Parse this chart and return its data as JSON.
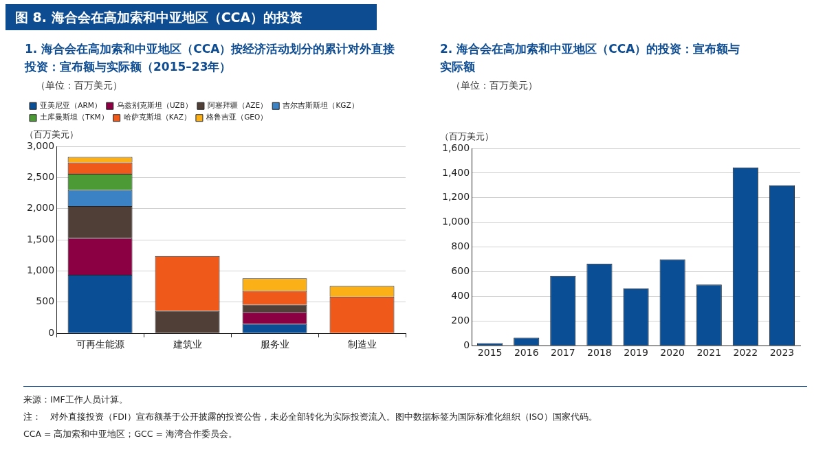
{
  "chart_data": [
    {
      "type": "other",
      "title": "图 8. 海合会在高加索和中亚地区（CCA）的投资",
      "annotations": [
        "来源：IMF工作人员计算。",
        "注：　对外直接投资（FDI）宣布额基于公开披露的投资公告，未必全部转化为实际投资流入。图中数据标签为国际标准化组织（ISO）国家代码。",
        "CCA = 高加索和中亚地区；GCC = 海湾合作委员会。"
      ]
    },
    {
      "type": "bar",
      "title": "1. 海合会在高加索和中亚地区（CCA）按经济活动划分的累计对外直接投资：宣布额与实际额（2015–23年）",
      "subtitle": "（单位：百万美元）",
      "ylabel": "（百万美元）",
      "stacked": true,
      "categories": [
        "可再生能源",
        "建筑业",
        "服务业",
        "制造业"
      ],
      "series": [
        {
          "name": "亚美尼亚（ARM）",
          "color": "#0a4f96",
          "values": [
            940,
            0,
            150,
            0
          ]
        },
        {
          "name": "乌兹别克斯坦（UZB）",
          "color": "#8b0042",
          "values": [
            590,
            0,
            190,
            0
          ]
        },
        {
          "name": "阿塞拜疆（AZE）",
          "color": "#4f3f37",
          "values": [
            510,
            360,
            120,
            0
          ]
        },
        {
          "name": "吉尔吉斯斯坦（KGZ）",
          "color": "#3a82c4",
          "values": [
            260,
            0,
            0,
            0
          ]
        },
        {
          "name": "土库曼斯坦（TKM）",
          "color": "#4b9a35",
          "values": [
            260,
            0,
            0,
            0
          ]
        },
        {
          "name": "哈萨克斯坦（KAZ）",
          "color": "#ef5a1a",
          "values": [
            180,
            880,
            220,
            590
          ]
        },
        {
          "name": "格鲁吉亚（GEO）",
          "color": "#fbb018",
          "values": [
            90,
            0,
            200,
            170
          ]
        }
      ],
      "ylim": [
        0,
        3000
      ],
      "yticks": [
        0,
        500,
        {
          "value": 1000,
          "label": "1,000"
        },
        {
          "value": 1500,
          "label": "1,500"
        },
        {
          "value": 2000,
          "label": "2,000"
        },
        {
          "value": 2500,
          "label": "2,500"
        },
        {
          "value": 3000,
          "label": "3,000"
        }
      ],
      "grid": "y",
      "legend": "top left"
    },
    {
      "type": "bar",
      "title": "2. 海合会在高加索和中亚地区（CCA）的投资：宣布额与实际额",
      "subtitle": "（单位：百万美元）",
      "ylabel": "（百万美元）",
      "categories": [
        "2015",
        "2016",
        "2017",
        "2018",
        "2019",
        "2020",
        "2021",
        "2022",
        "2023"
      ],
      "series": [
        {
          "color": "#0a4f96",
          "values": [
            20,
            65,
            565,
            665,
            465,
            700,
            495,
            1445,
            1300
          ]
        }
      ],
      "ylim": [
        0,
        1600
      ],
      "yticks": [
        0,
        200,
        400,
        600,
        800,
        {
          "value": 1000,
          "label": "1,000"
        },
        {
          "value": 1200,
          "label": "1,200"
        },
        {
          "value": 1400,
          "label": "1,400"
        },
        {
          "value": 1600,
          "label": "1,600"
        }
      ],
      "grid": "y"
    }
  ]
}
